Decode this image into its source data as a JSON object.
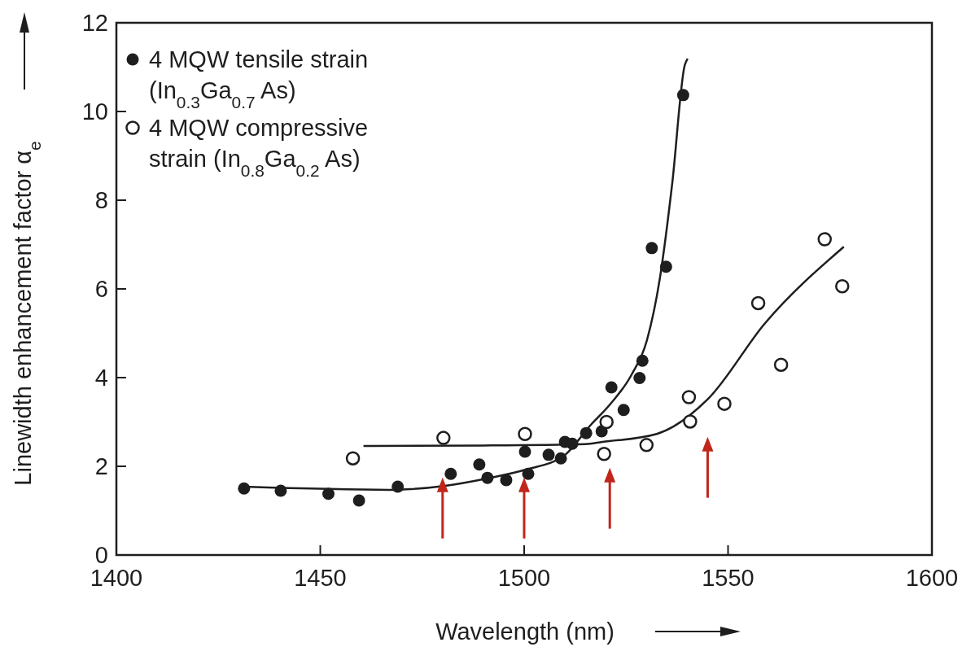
{
  "chart_data": {
    "type": "scatter",
    "xlabel": "Wavelength (nm)",
    "ylabel": "Linewidth enhancement factor α$_{e}$",
    "xlim": [
      1400,
      1600
    ],
    "xticks": [
      1400,
      1450,
      1500,
      1550,
      1600
    ],
    "ylim": [
      0,
      12
    ],
    "yticks": [
      0,
      2,
      4,
      6,
      8,
      10,
      12
    ],
    "legend": "top left",
    "series": [
      {
        "name": "4 MQW tensile strain (In$_{0.3}$Ga$_{0.7}$ As)",
        "marker": "circle",
        "color": "#1e1e1e",
        "x": [
          1431.3,
          1440.3,
          1452,
          1459.5,
          1469,
          1482,
          1489,
          1491,
          1495.6,
          1500.2,
          1501,
          1506,
          1509,
          1510,
          1511.8,
          1515.2,
          1519,
          1521.4,
          1524.4,
          1528.3,
          1529,
          1531.3,
          1534.8,
          1539
        ],
        "values": [
          1.5,
          1.45,
          1.38,
          1.23,
          1.54,
          1.83,
          2.04,
          1.74,
          1.69,
          2.33,
          1.83,
          2.26,
          2.18,
          2.55,
          2.51,
          2.75,
          2.79,
          3.78,
          3.27,
          3.99,
          4.38,
          6.92,
          6.5,
          10.37
        ]
      },
      {
        "name": "4 MQW compressive strain (In$_{0.8}$Ga$_{0.2}$ As)",
        "marker": "circle-open",
        "color": "#1e1e1e",
        "x": [
          1458,
          1480.2,
          1500.2,
          1520.2,
          1519.6,
          1530,
          1540.4,
          1540.7,
          1549.1,
          1557.4,
          1563,
          1573.7,
          1578
        ],
        "values": [
          2.18,
          2.64,
          2.73,
          3.0,
          2.28,
          2.48,
          3.56,
          3.01,
          3.41,
          5.68,
          4.29,
          7.12,
          6.06
        ]
      },
      {
        "type": "line",
        "marker": "none",
        "color": "#1e1e1e",
        "x": [
          1431.3,
          1467,
          1480.6,
          1490.6,
          1500.6,
          1509.8,
          1516.4,
          1521,
          1526.3,
          1530.1,
          1533.3,
          1536.3,
          1539.4,
          1540.1
        ],
        "values": [
          1.54,
          1.47,
          1.56,
          1.72,
          1.93,
          2.24,
          2.94,
          3.39,
          4.06,
          4.84,
          6.25,
          8.37,
          11.05,
          11.19
        ]
      },
      {
        "type": "line",
        "marker": "none",
        "color": "#1e1e1e",
        "x": [
          1460.6,
          1490,
          1515,
          1519.2,
          1532.5,
          1545.1,
          1559.1,
          1578.4
        ],
        "values": [
          2.46,
          2.47,
          2.5,
          2.55,
          2.73,
          3.52,
          5.23,
          6.95
        ]
      }
    ]
  }
}
